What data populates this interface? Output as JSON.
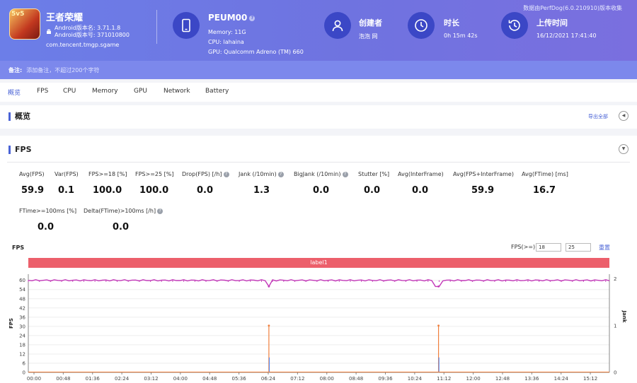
{
  "top_note": "数据由PerfDog(6.0.210910)版本收集",
  "app": {
    "icon_label": "5v5",
    "name": "王者荣耀",
    "version_line": "Android版本名: 3.71.1.8",
    "build_line": "Android版本号: 371010800",
    "package": "com.tencent.tmgp.sgame"
  },
  "device": {
    "name": "PEUM00",
    "help": "?",
    "memory": "Memory: 11G",
    "cpu": "CPU: lahaina",
    "gpu": "GPU: Qualcomm Adreno (TM) 660"
  },
  "creator": {
    "label": "创建者",
    "value": "泡泡 网"
  },
  "duration": {
    "label": "时长",
    "value": "0h 15m 42s"
  },
  "upload": {
    "label": "上传时间",
    "value": "16/12/2021 17:41:40"
  },
  "note": {
    "label": "备注:",
    "placeholder": "添加备注，不超过200个字符"
  },
  "tabs": [
    "概览",
    "FPS",
    "CPU",
    "Memory",
    "GPU",
    "Network",
    "Battery"
  ],
  "overview": {
    "title": "概览",
    "export": "导出全部",
    "btn": "◀"
  },
  "fps_section": {
    "title": "FPS",
    "btn": "▼"
  },
  "metrics_row1": [
    {
      "label": "Avg(FPS)",
      "value": "59.9",
      "help": false
    },
    {
      "label": "Var(FPS)",
      "value": "0.1",
      "help": false
    },
    {
      "label": "FPS>=18 [%]",
      "value": "100.0",
      "help": false
    },
    {
      "label": "FPS>=25 [%]",
      "value": "100.0",
      "help": false
    },
    {
      "label": "Drop(FPS) [/h]",
      "value": "0.0",
      "help": true
    },
    {
      "label": "Jank (/10min)",
      "value": "1.3",
      "help": true
    },
    {
      "label": "BigJank (/10min)",
      "value": "0.0",
      "help": true
    },
    {
      "label": "Stutter [%]",
      "value": "0.0",
      "help": false
    },
    {
      "label": "Avg(InterFrame)",
      "value": "0.0",
      "help": false
    },
    {
      "label": "Avg(FPS+InterFrame)",
      "value": "59.9",
      "help": false
    },
    {
      "label": "Avg(FTime) [ms]",
      "value": "16.7",
      "help": false
    }
  ],
  "metrics_row2": [
    {
      "label": "FTime>=100ms [%]",
      "value": "0.0",
      "help": false
    },
    {
      "label": "Delta(FTime)>100ms [/h]",
      "value": "0.0",
      "help": true
    }
  ],
  "chart_controls": {
    "title": "FPS",
    "fps_label": "FPS(>=)",
    "fps_low": "18",
    "fps_high": "25",
    "reset": "重置",
    "label_bar": "label1"
  },
  "chart_data": {
    "type": "line",
    "ylabel": "FPS",
    "y2label": "Jank",
    "ylim": [
      0,
      64
    ],
    "yticks": [
      0,
      6,
      12,
      18,
      24,
      30,
      36,
      42,
      48,
      54,
      60
    ],
    "y2lim": [
      0,
      2.1
    ],
    "y2ticks": [
      0,
      1,
      2
    ],
    "x_labels": [
      "00:00",
      "00:48",
      "01:36",
      "02:24",
      "03:12",
      "04:00",
      "04:48",
      "05:36",
      "06:24",
      "07:12",
      "08:00",
      "08:48",
      "09:36",
      "10:24",
      "11:12",
      "12:00",
      "12:48",
      "13:36",
      "14:24",
      "15:12"
    ],
    "x_range_seconds": [
      0,
      942
    ],
    "fps_series": {
      "name": "FPS",
      "color": "#c238b8",
      "base": 60,
      "dips": [
        {
          "t": 390,
          "v": 56
        },
        {
          "t": 665,
          "v": 56
        }
      ]
    },
    "jank_series": {
      "name": "Jank",
      "color": "#f07f3c",
      "spikes": [
        {
          "t": 390,
          "v": 1
        },
        {
          "t": 665,
          "v": 1
        }
      ]
    },
    "bigjank_series": {
      "name": "BigJank",
      "color": "#5a8bf0",
      "spikes": [
        {
          "t": 390,
          "v": 0.32
        },
        {
          "t": 665,
          "v": 0.32
        }
      ]
    }
  },
  "colors": {
    "header": "#6c7ee8",
    "accent": "#4a63d6",
    "label_bar": "#ec5f6b"
  }
}
